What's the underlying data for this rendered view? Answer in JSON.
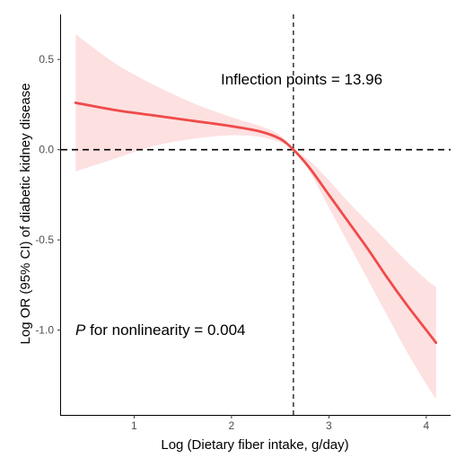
{
  "chart_data": {
    "type": "line",
    "xlabel": "Log (Dietary fiber intake, g/day)",
    "ylabel": "Log OR (95% CI) of diabetic kidney disease",
    "xlim": [
      0.25,
      4.25
    ],
    "ylim": [
      -1.47,
      0.75
    ],
    "x_ticks": [
      1,
      2,
      3,
      4
    ],
    "x_tick_labels": [
      "1",
      "2",
      "3",
      "4"
    ],
    "y_ticks": [
      -1.0,
      -0.5,
      0.0,
      0.5
    ],
    "y_tick_labels": [
      "-1.0",
      "-0.5",
      "0.0",
      "0.5"
    ],
    "grid": false,
    "reference_lines": {
      "horizontal_y": 0.0,
      "vertical_x": 2.636
    },
    "series": [
      {
        "color": "#f04a4a",
        "band_color": "#fde0e0",
        "x": [
          0.4,
          0.8,
          1.2,
          1.6,
          2.0,
          2.3,
          2.5,
          2.636,
          2.8,
          3.0,
          3.2,
          3.4,
          3.6,
          3.8,
          4.0,
          4.1
        ],
        "y": [
          0.26,
          0.22,
          0.19,
          0.16,
          0.13,
          0.1,
          0.06,
          0.0,
          -0.1,
          -0.25,
          -0.4,
          -0.55,
          -0.71,
          -0.86,
          -1.0,
          -1.07
        ],
        "lower": [
          -0.12,
          -0.05,
          0.02,
          0.06,
          0.08,
          0.07,
          0.04,
          0.0,
          -0.12,
          -0.32,
          -0.52,
          -0.72,
          -0.92,
          -1.12,
          -1.3,
          -1.38
        ],
        "upper": [
          0.64,
          0.48,
          0.36,
          0.26,
          0.18,
          0.13,
          0.08,
          0.0,
          -0.06,
          -0.17,
          -0.29,
          -0.4,
          -0.51,
          -0.62,
          -0.72,
          -0.76
        ]
      }
    ]
  },
  "annotations": {
    "inflection": "Inflection points = 13.96",
    "p_italic": "P",
    "p_rest": " for nonlinearity = 0.004"
  }
}
